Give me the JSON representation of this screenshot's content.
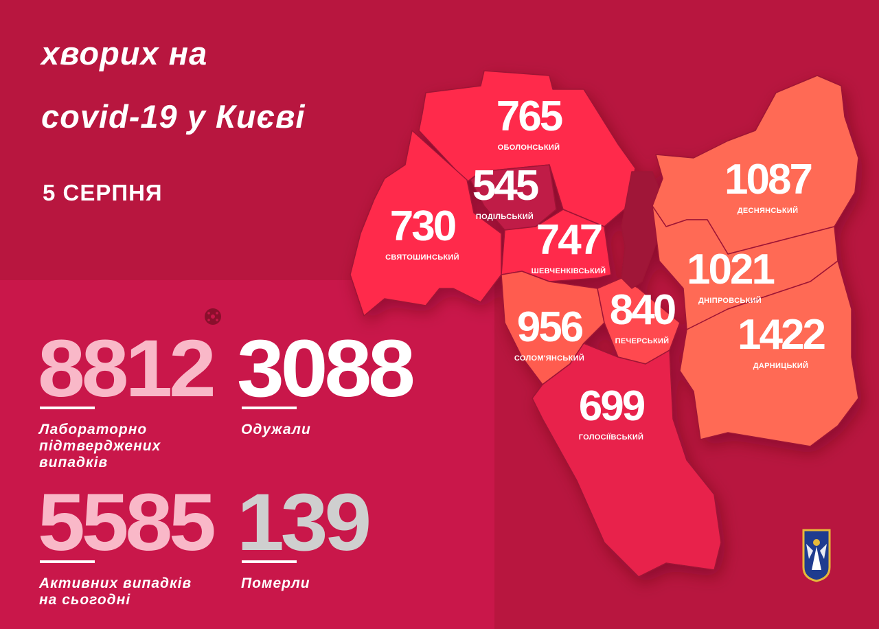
{
  "header": {
    "title_line1": "хворих на",
    "title_line2": "covid-19 у Києві",
    "date": "5 СЕРПНЯ"
  },
  "stats": [
    {
      "value": "8812",
      "label_lines": [
        "Лабораторно",
        "підтверджених",
        "випадків"
      ],
      "color": "#f9b8c8"
    },
    {
      "value": "3088",
      "label_lines": [
        "Одужали"
      ],
      "color": "#ffffff"
    },
    {
      "value": "5585",
      "label_lines": [
        "Активних випадків",
        "на сьогодні"
      ],
      "color": "#f9b8c8"
    },
    {
      "value": "139",
      "label_lines": [
        "Померли"
      ],
      "color": "#cfcfcf"
    }
  ],
  "districts": [
    {
      "name": "ОБОЛОНСЬКИЙ",
      "value": "765",
      "color": "#ff2b4c"
    },
    {
      "name": "ПОДІЛЬСЬКИЙ",
      "value": "545",
      "color": "#c01b47"
    },
    {
      "name": "СВЯТОШИНСЬКИЙ",
      "value": "730",
      "color": "#ff2b4c"
    },
    {
      "name": "ШЕВЧЕНКІВСЬКИЙ",
      "value": "747",
      "color": "#ff2b4c"
    },
    {
      "name": "СОЛОМ'ЯНСЬКИЙ",
      "value": "956",
      "color": "#ff5b50"
    },
    {
      "name": "ПЕЧЕРСЬКИЙ",
      "value": "840",
      "color": "#ff4a4f"
    },
    {
      "name": "ГОЛОСІЇВСЬКИЙ",
      "value": "699",
      "color": "#e8204c"
    },
    {
      "name": "ДЕСНЯНСЬКИЙ",
      "value": "1087",
      "color": "#ff6a55"
    },
    {
      "name": "ДНІПРОВСЬКИЙ",
      "value": "1021",
      "color": "#ff6a55"
    },
    {
      "name": "ДАРНИЦЬКИЙ",
      "value": "1422",
      "color": "#ff6a55"
    }
  ],
  "icons": {
    "virus": "virus-icon",
    "emblem": "kyiv-coat-of-arms"
  }
}
